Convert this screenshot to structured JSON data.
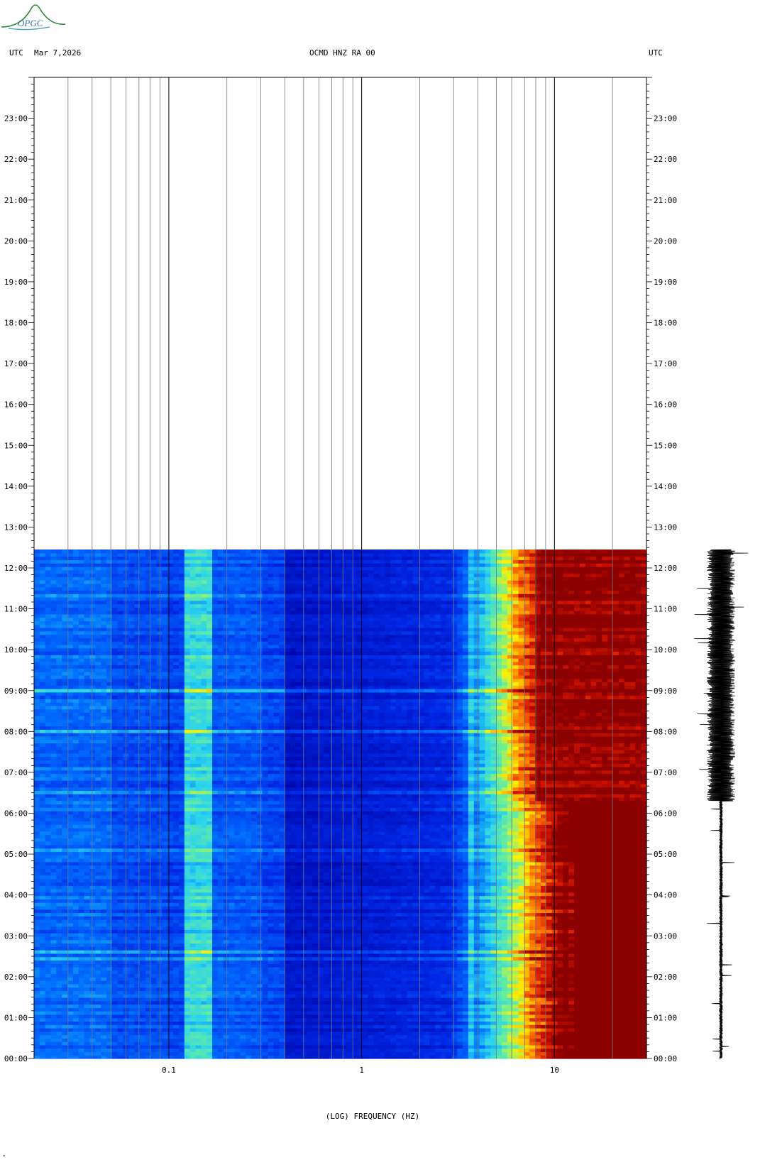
{
  "header": {
    "left_label": "UTC",
    "date": "Mar 7,2026",
    "station": "OCMD HNZ RA 00",
    "right_label": "UTC"
  },
  "logo": {
    "text": "OPGC",
    "color": "#2e8b3a"
  },
  "footer_mark": "*",
  "chart_data": {
    "type": "heatmap",
    "title": "OCMD HNZ RA 00",
    "xlabel": "(LOG) FREQUENCY (HZ)",
    "x_scale": "log",
    "xlim": [
      0.02,
      30
    ],
    "x_ticks": [
      {
        "value": 0.1,
        "label": "0.1"
      },
      {
        "value": 1,
        "label": "1"
      },
      {
        "value": 10,
        "label": "10"
      }
    ],
    "ylabel": "UTC",
    "ylim_hours": [
      0,
      24
    ],
    "y_ticks": [
      "00:00",
      "01:00",
      "02:00",
      "03:00",
      "04:00",
      "05:00",
      "06:00",
      "07:00",
      "08:00",
      "09:00",
      "10:00",
      "11:00",
      "12:00",
      "13:00",
      "14:00",
      "15:00",
      "16:00",
      "17:00",
      "18:00",
      "19:00",
      "20:00",
      "21:00",
      "22:00",
      "23:00"
    ],
    "data_end_hour": 12.45,
    "colors": {
      "low": "#0000a8",
      "mid": "#0050ff",
      "cyan": "#33ddee",
      "yellow": "#ffee00",
      "high": "#8b0000"
    },
    "features": {
      "microseism_band_hz": [
        0.12,
        0.17
      ],
      "tremor_line_hz": 3.6,
      "high_energy_edge_hz_at_midnight": 7,
      "high_energy_edge_hz_at_noon": 6,
      "persistent_line_hz": 12.5,
      "noise_increase_hour": 6.3
    },
    "seismogram_trace": "right"
  }
}
